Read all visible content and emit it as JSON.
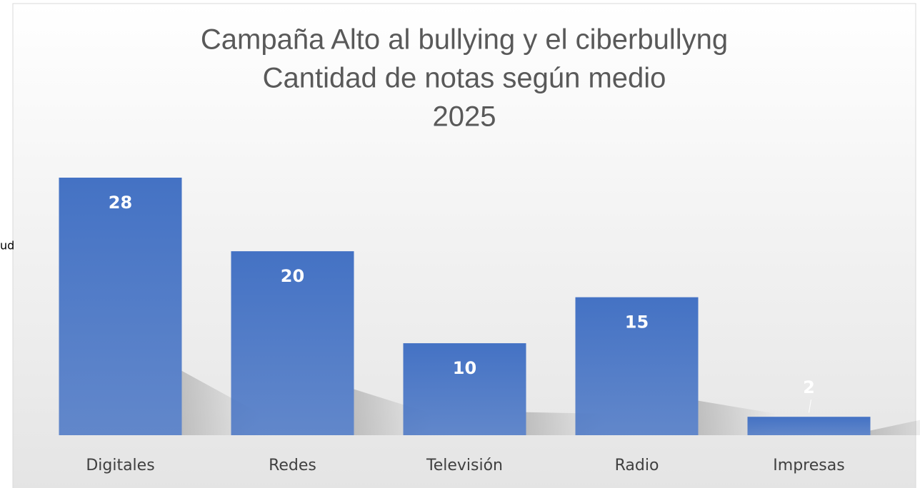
{
  "chart_data": {
    "type": "bar",
    "title": [
      "Campaña Alto al bullying y el ciberbullyng",
      "Cantidad de notas según medio",
      "2025"
    ],
    "annotation": "ud",
    "categories": [
      "Digitales",
      "Redes",
      "Televisión",
      "Radio",
      "Impresas"
    ],
    "values": [
      28,
      20,
      10,
      15,
      2
    ],
    "color": "#4472c4"
  }
}
